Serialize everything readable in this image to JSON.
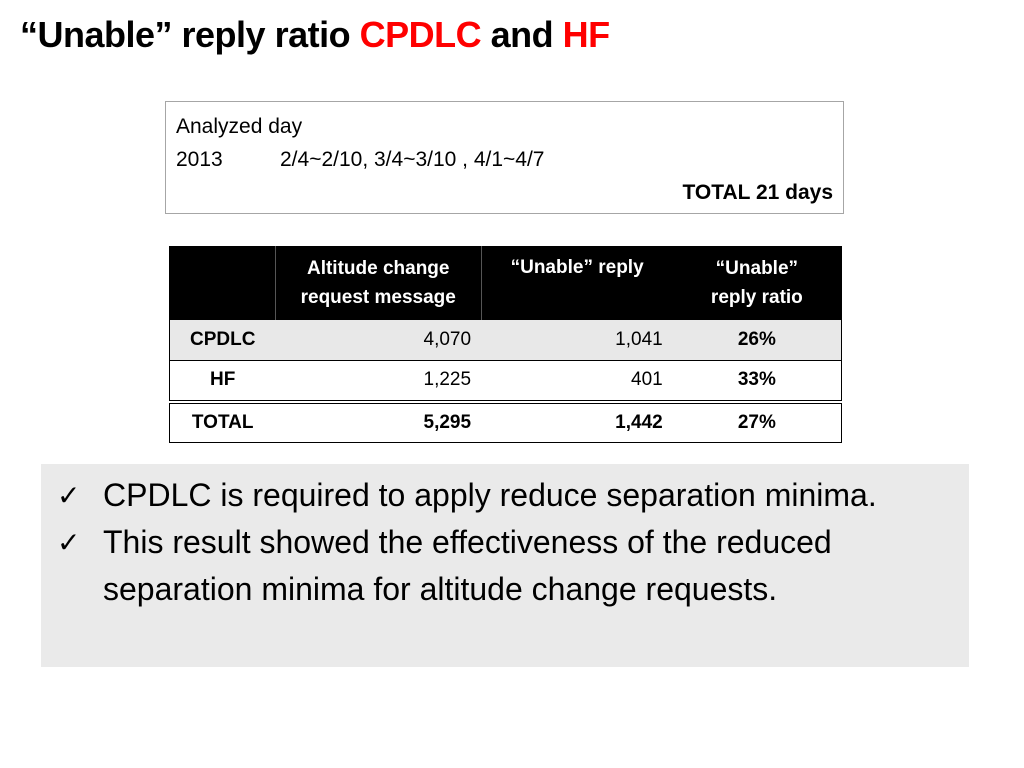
{
  "title": {
    "part1": "“Unable” reply ratio ",
    "cpdlc": "CPDLC",
    "and": " and ",
    "hf": "HF"
  },
  "colors": {
    "accent": "#ff0000",
    "header_bg": "#000000",
    "shade": "#e8e8e8",
    "panel": "#eaeaea"
  },
  "info": {
    "label": "Analyzed day",
    "year": "2013",
    "dates": "2/4~2/10, 3/4~3/10 , 4/1~4/7",
    "total": "TOTAL 21 days"
  },
  "table": {
    "headers": {
      "label": "",
      "altitude_line1": "Altitude change",
      "altitude_line2": "request message",
      "unable": "“Unable” reply",
      "ratio_line1": "“Unable”",
      "ratio_line2": "reply ratio"
    },
    "rows": [
      {
        "label": "CPDLC",
        "altitude": "4,070",
        "unable": "1,041",
        "ratio": "26%"
      },
      {
        "label": "HF",
        "altitude": "1,225",
        "unable": "401",
        "ratio": "33%"
      }
    ],
    "total": {
      "label": "TOTAL",
      "altitude": "5,295",
      "unable": "1,442",
      "ratio": "27%"
    }
  },
  "bullets": [
    {
      "icon": "check-icon",
      "text": "CPDLC is required to apply reduce separation minima."
    },
    {
      "icon": "check-icon",
      "text": "This result showed the effectiveness of the reduced separation minima for altitude change requests."
    }
  ]
}
